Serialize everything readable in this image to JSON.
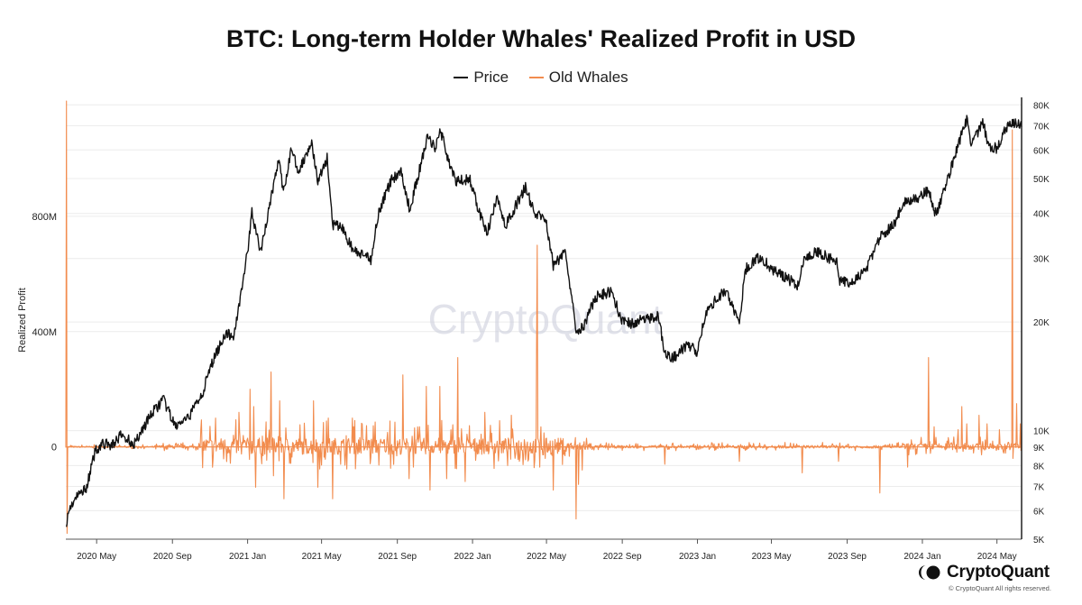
{
  "chart_data": {
    "type": "line",
    "title": "BTC: Long-term Holder Whales' Realized Profit in USD",
    "ylabel": "Realized Profit",
    "legend_position": "top-center",
    "grid": true,
    "watermark": "CryptoQuant",
    "x_ticks": [
      "2020 May",
      "2020 Sep",
      "2021 Jan",
      "2021 May",
      "2021 Sep",
      "2022 Jan",
      "2022 May",
      "2022 Sep",
      "2023 Jan",
      "2023 May",
      "2023 Sep",
      "2024 Jan",
      "2024 May"
    ],
    "x_range": [
      "2020-03-12",
      "2024-06-10"
    ],
    "y_left": {
      "ticks": [
        0,
        400000000,
        800000000
      ],
      "tick_labels": [
        "0",
        "400M",
        "800M"
      ],
      "range": [
        -320000000,
        1200000000
      ]
    },
    "y_right": {
      "scale": "log",
      "ticks": [
        5000,
        6000,
        7000,
        8000,
        9000,
        10000,
        20000,
        30000,
        40000,
        50000,
        60000,
        70000,
        80000
      ],
      "tick_labels": [
        "5K",
        "6K",
        "7K",
        "8K",
        "9K",
        "10K",
        "20K",
        "30K",
        "40K",
        "50K",
        "60K",
        "70K",
        "80K"
      ],
      "range": [
        5000,
        82000
      ]
    },
    "series": [
      {
        "name": "Price",
        "axis": "right",
        "color": "#111111",
        "points": [
          [
            "2020-03-13",
            5600
          ],
          [
            "2020-03-20",
            6200
          ],
          [
            "2020-04-01",
            6600
          ],
          [
            "2020-04-15",
            7000
          ],
          [
            "2020-04-29",
            8800
          ],
          [
            "2020-05-10",
            9200
          ],
          [
            "2020-05-25",
            9100
          ],
          [
            "2020-06-10",
            9700
          ],
          [
            "2020-07-01",
            9200
          ],
          [
            "2020-07-27",
            11000
          ],
          [
            "2020-08-17",
            12200
          ],
          [
            "2020-09-05",
            10300
          ],
          [
            "2020-09-25",
            10700
          ],
          [
            "2020-10-21",
            12900
          ],
          [
            "2020-11-05",
            15500
          ],
          [
            "2020-11-25",
            18500
          ],
          [
            "2020-12-10",
            18300
          ],
          [
            "2020-12-20",
            23500
          ],
          [
            "2021-01-02",
            32000
          ],
          [
            "2021-01-08",
            40500
          ],
          [
            "2021-01-22",
            31000
          ],
          [
            "2021-02-10",
            46000
          ],
          [
            "2021-02-21",
            57000
          ],
          [
            "2021-02-28",
            45000
          ],
          [
            "2021-03-13",
            61000
          ],
          [
            "2021-03-25",
            52000
          ],
          [
            "2021-04-14",
            63500
          ],
          [
            "2021-04-25",
            49000
          ],
          [
            "2021-05-10",
            57000
          ],
          [
            "2021-05-19",
            37000
          ],
          [
            "2021-06-01",
            37000
          ],
          [
            "2021-06-22",
            31500
          ],
          [
            "2021-07-20",
            29800
          ],
          [
            "2021-08-01",
            40000
          ],
          [
            "2021-08-22",
            49500
          ],
          [
            "2021-09-07",
            52500
          ],
          [
            "2021-09-21",
            41000
          ],
          [
            "2021-10-01",
            48000
          ],
          [
            "2021-10-20",
            65000
          ],
          [
            "2021-11-01",
            61000
          ],
          [
            "2021-11-10",
            68000
          ],
          [
            "2021-11-26",
            54000
          ],
          [
            "2021-12-04",
            49000
          ],
          [
            "2021-12-27",
            50000
          ],
          [
            "2022-01-10",
            41500
          ],
          [
            "2022-01-24",
            35000
          ],
          [
            "2022-02-10",
            44000
          ],
          [
            "2022-02-24",
            37000
          ],
          [
            "2022-03-28",
            47500
          ],
          [
            "2022-04-11",
            40000
          ],
          [
            "2022-04-30",
            38500
          ],
          [
            "2022-05-09",
            31000
          ],
          [
            "2022-05-12",
            28500
          ],
          [
            "2022-05-31",
            31500
          ],
          [
            "2022-06-13",
            22500
          ],
          [
            "2022-06-18",
            19000
          ],
          [
            "2022-07-01",
            19500
          ],
          [
            "2022-07-20",
            23500
          ],
          [
            "2022-08-15",
            24300
          ],
          [
            "2022-09-01",
            20000
          ],
          [
            "2022-09-15",
            19800
          ],
          [
            "2022-10-05",
            20300
          ],
          [
            "2022-10-29",
            20800
          ],
          [
            "2022-11-09",
            16500
          ],
          [
            "2022-11-21",
            15800
          ],
          [
            "2022-12-15",
            17300
          ],
          [
            "2022-12-31",
            16600
          ],
          [
            "2023-01-14",
            21000
          ],
          [
            "2023-01-31",
            23200
          ],
          [
            "2023-02-16",
            24500
          ],
          [
            "2023-03-10",
            20000
          ],
          [
            "2023-03-20",
            28000
          ],
          [
            "2023-04-13",
            30400
          ],
          [
            "2023-05-01",
            28000
          ],
          [
            "2023-06-15",
            25200
          ],
          [
            "2023-06-22",
            30000
          ],
          [
            "2023-07-13",
            31500
          ],
          [
            "2023-08-16",
            29200
          ],
          [
            "2023-08-18",
            26200
          ],
          [
            "2023-09-10",
            25800
          ],
          [
            "2023-10-01",
            27900
          ],
          [
            "2023-10-24",
            34500
          ],
          [
            "2023-11-15",
            37000
          ],
          [
            "2023-12-05",
            44000
          ],
          [
            "2023-12-20",
            43500
          ],
          [
            "2024-01-11",
            46500
          ],
          [
            "2024-01-23",
            39500
          ],
          [
            "2024-02-14",
            51500
          ],
          [
            "2024-02-28",
            62000
          ],
          [
            "2024-03-14",
            73000
          ],
          [
            "2024-03-20",
            62000
          ],
          [
            "2024-04-08",
            71500
          ],
          [
            "2024-04-18",
            61500
          ],
          [
            "2024-04-30",
            60500
          ],
          [
            "2024-05-20",
            71000
          ],
          [
            "2024-06-05",
            71000
          ],
          [
            "2024-06-10",
            69500
          ]
        ]
      },
      {
        "name": "Old Whales",
        "axis": "left",
        "color": "#f28c4e",
        "baseline": 0,
        "spikes": [
          [
            "2020-03-13",
            1200000000
          ],
          [
            "2020-03-14",
            -300000000
          ],
          [
            "2020-11-10",
            100000000
          ],
          [
            "2020-12-18",
            120000000
          ],
          [
            "2021-01-05",
            200000000
          ],
          [
            "2021-01-11",
            140000000
          ],
          [
            "2021-01-14",
            -140000000
          ],
          [
            "2021-02-08",
            260000000
          ],
          [
            "2021-02-12",
            -100000000
          ],
          [
            "2021-02-22",
            160000000
          ],
          [
            "2021-03-01",
            -180000000
          ],
          [
            "2021-04-18",
            160000000
          ],
          [
            "2021-04-25",
            -140000000
          ],
          [
            "2021-05-12",
            100000000
          ],
          [
            "2021-05-19",
            -180000000
          ],
          [
            "2021-06-20",
            100000000
          ],
          [
            "2021-08-20",
            90000000
          ],
          [
            "2021-09-10",
            250000000
          ],
          [
            "2021-09-20",
            -110000000
          ],
          [
            "2021-10-18",
            210000000
          ],
          [
            "2021-10-24",
            -150000000
          ],
          [
            "2021-11-09",
            210000000
          ],
          [
            "2021-11-20",
            -110000000
          ],
          [
            "2021-12-08",
            310000000
          ],
          [
            "2021-12-20",
            -120000000
          ],
          [
            "2022-01-21",
            120000000
          ],
          [
            "2022-03-05",
            110000000
          ],
          [
            "2022-04-15",
            350000000
          ],
          [
            "2022-04-16",
            700000000
          ],
          [
            "2022-04-20",
            -70000000
          ],
          [
            "2022-05-12",
            -150000000
          ],
          [
            "2022-06-18",
            -250000000
          ],
          [
            "2022-06-22",
            -130000000
          ],
          [
            "2022-06-28",
            -80000000
          ],
          [
            "2022-11-09",
            -60000000
          ],
          [
            "2023-03-10",
            -50000000
          ],
          [
            "2023-06-20",
            -90000000
          ],
          [
            "2023-08-18",
            -50000000
          ],
          [
            "2023-10-24",
            -160000000
          ],
          [
            "2023-12-08",
            -70000000
          ],
          [
            "2024-01-11",
            310000000
          ],
          [
            "2024-01-20",
            70000000
          ],
          [
            "2024-02-28",
            60000000
          ],
          [
            "2024-03-05",
            140000000
          ],
          [
            "2024-03-13",
            80000000
          ],
          [
            "2024-04-02",
            110000000
          ],
          [
            "2024-04-15",
            80000000
          ],
          [
            "2024-05-05",
            60000000
          ],
          [
            "2024-05-26",
            1100000000
          ],
          [
            "2024-05-27",
            -40000000
          ],
          [
            "2024-06-02",
            150000000
          ],
          [
            "2024-06-08",
            80000000
          ]
        ]
      }
    ]
  },
  "brand": {
    "name": "CryptoQuant",
    "copyright": "© CryptoQuant All rights reserved."
  }
}
